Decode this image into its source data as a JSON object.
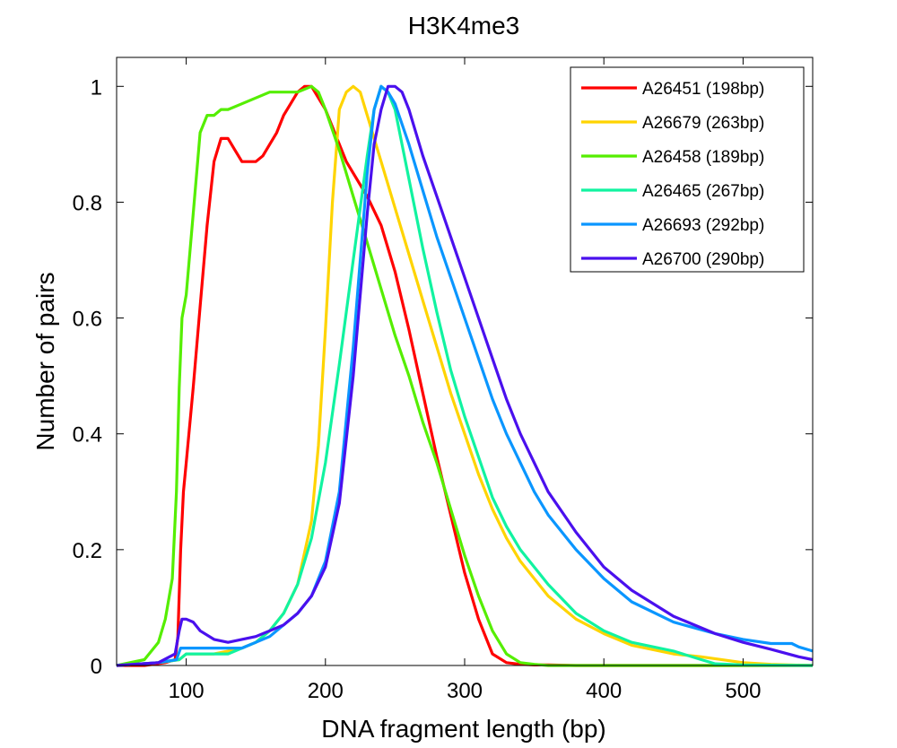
{
  "chart_data": {
    "type": "line",
    "title": "H3K4me3",
    "xlabel": "DNA fragment length (bp)",
    "ylabel": "Number of pairs",
    "xlim": [
      50,
      550
    ],
    "ylim": [
      0,
      1.05
    ],
    "xticks": [
      100,
      200,
      300,
      400,
      500
    ],
    "yticks": [
      0,
      0.2,
      0.4,
      0.6,
      0.8,
      1
    ],
    "xtick_labels": [
      "100",
      "200",
      "300",
      "400",
      "500"
    ],
    "ytick_labels": [
      "0",
      "0.2",
      "0.4",
      "0.6",
      "0.8",
      "1"
    ],
    "grid": false,
    "legend_position": "top-right",
    "series": [
      {
        "name": "A26451 (198bp)",
        "color": "#ff0000",
        "x": [
          50,
          70,
          85,
          92,
          94,
          96,
          98,
          100,
          105,
          110,
          115,
          120,
          125,
          130,
          135,
          140,
          145,
          150,
          155,
          160,
          165,
          170,
          175,
          180,
          185,
          190,
          195,
          200,
          205,
          210,
          215,
          220,
          230,
          240,
          250,
          260,
          270,
          280,
          290,
          300,
          310,
          320,
          330,
          340,
          350,
          360,
          380,
          400,
          420,
          450,
          500,
          550
        ],
        "y": [
          0,
          0,
          0.005,
          0.01,
          0.05,
          0.2,
          0.3,
          0.35,
          0.48,
          0.62,
          0.76,
          0.87,
          0.91,
          0.91,
          0.89,
          0.87,
          0.87,
          0.87,
          0.88,
          0.9,
          0.92,
          0.95,
          0.97,
          0.99,
          1.0,
          1.0,
          0.98,
          0.96,
          0.93,
          0.9,
          0.87,
          0.85,
          0.81,
          0.76,
          0.68,
          0.58,
          0.47,
          0.36,
          0.26,
          0.16,
          0.08,
          0.02,
          0.005,
          0.002,
          0.001,
          0.001,
          0.0,
          0.0,
          0.0,
          0.0,
          0.0,
          0.0
        ]
      },
      {
        "name": "A26679 (263bp)",
        "color": "#ffd400",
        "x": [
          50,
          80,
          95,
          100,
          110,
          120,
          130,
          140,
          150,
          160,
          170,
          180,
          190,
          195,
          200,
          205,
          210,
          215,
          220,
          225,
          230,
          240,
          250,
          260,
          270,
          280,
          290,
          300,
          310,
          320,
          330,
          340,
          350,
          360,
          380,
          400,
          420,
          450,
          470,
          500,
          520,
          550
        ],
        "y": [
          0,
          0.005,
          0.01,
          0.02,
          0.02,
          0.02,
          0.025,
          0.03,
          0.04,
          0.06,
          0.09,
          0.14,
          0.25,
          0.38,
          0.58,
          0.8,
          0.96,
          0.99,
          1.0,
          0.99,
          0.95,
          0.87,
          0.79,
          0.71,
          0.63,
          0.55,
          0.47,
          0.4,
          0.33,
          0.27,
          0.22,
          0.18,
          0.15,
          0.12,
          0.08,
          0.055,
          0.035,
          0.02,
          0.015,
          0.005,
          0.002,
          0.0
        ]
      },
      {
        "name": "A26458 (189bp)",
        "color": "#55ee00",
        "x": [
          50,
          70,
          80,
          85,
          90,
          93,
          95,
          97,
          100,
          105,
          110,
          115,
          120,
          125,
          130,
          140,
          150,
          160,
          170,
          180,
          190,
          195,
          200,
          210,
          220,
          230,
          240,
          250,
          260,
          270,
          280,
          290,
          300,
          310,
          320,
          330,
          340,
          350,
          360,
          380,
          400,
          420,
          450,
          500,
          550
        ],
        "y": [
          0,
          0.01,
          0.04,
          0.08,
          0.15,
          0.3,
          0.48,
          0.6,
          0.64,
          0.78,
          0.92,
          0.95,
          0.95,
          0.96,
          0.96,
          0.97,
          0.98,
          0.99,
          0.99,
          0.99,
          1.0,
          0.99,
          0.96,
          0.89,
          0.81,
          0.73,
          0.65,
          0.57,
          0.5,
          0.42,
          0.35,
          0.27,
          0.19,
          0.12,
          0.06,
          0.02,
          0.005,
          0.002,
          0.0,
          0.0,
          0.0,
          0.0,
          0.0,
          0.0,
          0.0
        ]
      },
      {
        "name": "A26465 (267bp)",
        "color": "#11f3a0",
        "x": [
          50,
          80,
          95,
          100,
          110,
          120,
          130,
          140,
          150,
          160,
          170,
          180,
          190,
          200,
          210,
          220,
          230,
          235,
          240,
          245,
          250,
          260,
          270,
          280,
          290,
          300,
          310,
          320,
          330,
          340,
          350,
          360,
          380,
          400,
          420,
          450,
          470,
          480,
          500,
          550
        ],
        "y": [
          0,
          0.005,
          0.01,
          0.02,
          0.02,
          0.02,
          0.02,
          0.03,
          0.04,
          0.06,
          0.09,
          0.14,
          0.22,
          0.35,
          0.52,
          0.7,
          0.88,
          0.96,
          1.0,
          0.99,
          0.96,
          0.84,
          0.72,
          0.61,
          0.51,
          0.43,
          0.36,
          0.29,
          0.24,
          0.2,
          0.17,
          0.14,
          0.09,
          0.06,
          0.04,
          0.025,
          0.01,
          0.003,
          0.001,
          0.0
        ]
      },
      {
        "name": "A26693 (292bp)",
        "color": "#0a96ff",
        "x": [
          50,
          80,
          93,
          96,
          100,
          110,
          120,
          130,
          140,
          150,
          160,
          170,
          180,
          190,
          200,
          210,
          220,
          230,
          235,
          240,
          245,
          250,
          260,
          270,
          280,
          290,
          300,
          310,
          320,
          330,
          340,
          350,
          360,
          380,
          400,
          420,
          450,
          480,
          500,
          520,
          535,
          540,
          550
        ],
        "y": [
          0,
          0.005,
          0.01,
          0.03,
          0.03,
          0.03,
          0.03,
          0.03,
          0.03,
          0.04,
          0.05,
          0.07,
          0.09,
          0.12,
          0.18,
          0.3,
          0.55,
          0.85,
          0.96,
          1.0,
          0.99,
          0.97,
          0.9,
          0.82,
          0.74,
          0.67,
          0.6,
          0.53,
          0.46,
          0.4,
          0.35,
          0.3,
          0.26,
          0.2,
          0.15,
          0.11,
          0.075,
          0.055,
          0.045,
          0.038,
          0.038,
          0.032,
          0.025
        ]
      },
      {
        "name": "A26700 (290bp)",
        "color": "#4a10ee",
        "x": [
          50,
          80,
          92,
          95,
          97,
          100,
          105,
          110,
          120,
          130,
          140,
          150,
          160,
          170,
          180,
          190,
          200,
          210,
          220,
          230,
          235,
          240,
          245,
          250,
          255,
          260,
          270,
          280,
          290,
          300,
          310,
          320,
          330,
          340,
          350,
          360,
          380,
          400,
          420,
          450,
          480,
          500,
          520,
          540,
          550
        ],
        "y": [
          0,
          0.005,
          0.02,
          0.06,
          0.08,
          0.08,
          0.075,
          0.06,
          0.045,
          0.04,
          0.045,
          0.05,
          0.06,
          0.07,
          0.09,
          0.12,
          0.17,
          0.28,
          0.5,
          0.78,
          0.9,
          0.96,
          1.0,
          1.0,
          0.99,
          0.96,
          0.88,
          0.81,
          0.74,
          0.67,
          0.6,
          0.53,
          0.46,
          0.4,
          0.35,
          0.3,
          0.23,
          0.17,
          0.13,
          0.085,
          0.055,
          0.04,
          0.028,
          0.015,
          0.01
        ]
      }
    ]
  }
}
